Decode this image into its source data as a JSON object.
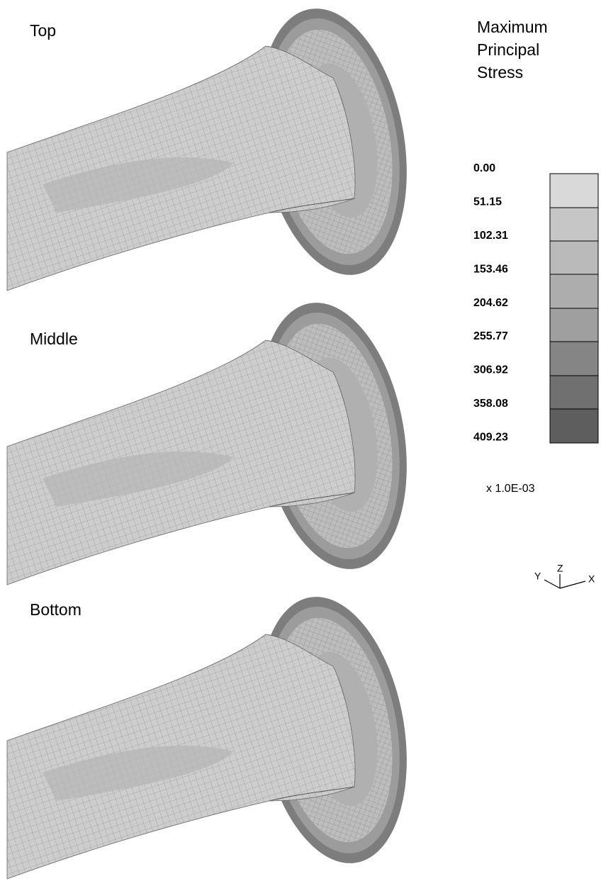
{
  "panels": [
    {
      "label": "Top"
    },
    {
      "label": "Middle"
    },
    {
      "label": "Bottom"
    }
  ],
  "legend": {
    "title_lines": [
      "Maximum",
      "Principal",
      "Stress"
    ],
    "labels": [
      "0.00",
      "51.15",
      "102.31",
      "153.46",
      "204.62",
      "255.77",
      "306.92",
      "358.08",
      "409.23"
    ],
    "scale": "x 1.0E-03"
  },
  "triad": {
    "z": "Z",
    "y": "Y",
    "x": "X"
  }
}
